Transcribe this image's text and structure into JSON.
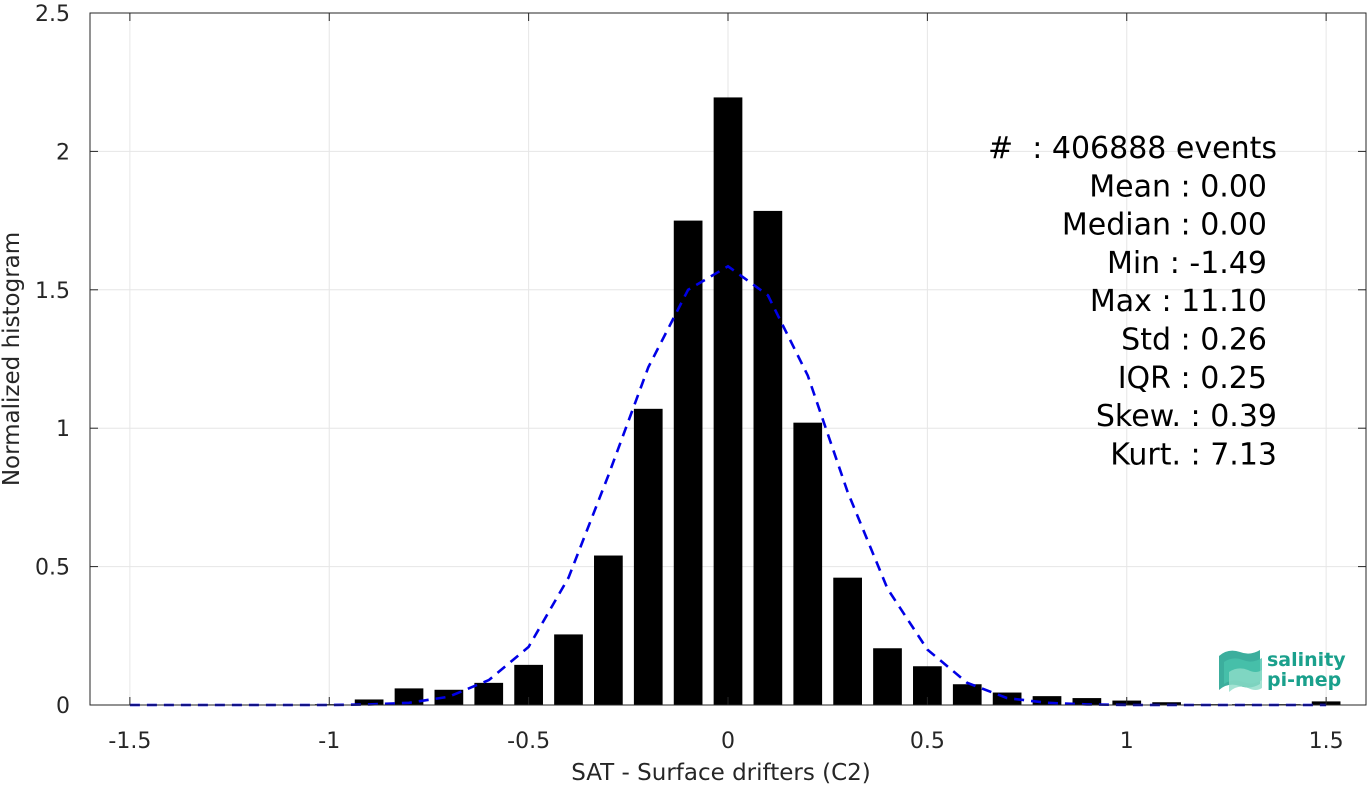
{
  "chart_data": {
    "type": "bar",
    "xlabel": "SAT - Surface drifters (C2)",
    "ylabel": "Normalized histogram",
    "xlim": [
      -1.6,
      1.6
    ],
    "ylim": [
      0,
      2.5
    ],
    "xticks": [
      "-1.5",
      "-1",
      "-0.5",
      "0",
      "0.5",
      "1",
      "1.5"
    ],
    "xtick_values": [
      -1.5,
      -1,
      -0.5,
      0,
      0.5,
      1,
      1.5
    ],
    "yticks": [
      "0",
      "0.5",
      "1",
      "1.5",
      "2",
      "2.5"
    ],
    "ytick_values": [
      0,
      0.5,
      1,
      1.5,
      2,
      2.5
    ],
    "grid": true,
    "bin_width": 0.1,
    "bar_width_fraction": 0.72,
    "bars": {
      "x": [
        -1.5,
        -1.4,
        -1.3,
        -1.2,
        -1.1,
        -1.0,
        -0.9,
        -0.8,
        -0.7,
        -0.6,
        -0.5,
        -0.4,
        -0.3,
        -0.2,
        -0.1,
        0.0,
        0.1,
        0.2,
        0.3,
        0.4,
        0.5,
        0.6,
        0.7,
        0.8,
        0.9,
        1.0,
        1.1,
        1.2,
        1.3,
        1.4,
        1.5
      ],
      "values": [
        0.0,
        0.0,
        0.0,
        0.0,
        0.0,
        0.003,
        0.02,
        0.06,
        0.055,
        0.08,
        0.145,
        0.255,
        0.54,
        1.07,
        1.75,
        2.195,
        1.785,
        1.02,
        0.46,
        0.205,
        0.14,
        0.075,
        0.045,
        0.032,
        0.025,
        0.016,
        0.01,
        0.003,
        0.003,
        0.003,
        0.013
      ]
    },
    "series": [
      {
        "type": "line",
        "style": "dashed",
        "color": "#0000e6",
        "x": [
          -1.5,
          -1.4,
          -1.3,
          -1.2,
          -1.1,
          -1.0,
          -0.9,
          -0.8,
          -0.7,
          -0.6,
          -0.5,
          -0.4,
          -0.3,
          -0.2,
          -0.1,
          0.0,
          0.1,
          0.2,
          0.3,
          0.4,
          0.5,
          0.6,
          0.7,
          0.8,
          0.9,
          1.0,
          1.1,
          1.2,
          1.3,
          1.4,
          1.5
        ],
        "values": [
          0.0,
          0.0,
          0.0,
          0.0,
          0.0,
          0.0,
          0.002,
          0.008,
          0.03,
          0.09,
          0.21,
          0.46,
          0.83,
          1.22,
          1.5,
          1.585,
          1.48,
          1.19,
          0.77,
          0.42,
          0.2,
          0.08,
          0.025,
          0.008,
          0.002,
          0.0,
          0.0,
          0.0,
          0.0,
          0.0,
          0.0
        ]
      }
    ],
    "bar_color": "#000000",
    "stats": [
      {
        "label": "#  ",
        "value": "406888 events"
      },
      {
        "label": "Mean",
        "value": "0.00"
      },
      {
        "label": "Median",
        "value": "0.00"
      },
      {
        "label": "Min",
        "value": "-1.49"
      },
      {
        "label": "Max",
        "value": "11.10"
      },
      {
        "label": "Std",
        "value": "0.26"
      },
      {
        "label": "IQR",
        "value": "0.25"
      },
      {
        "label": "Skew.",
        "value": "0.39"
      },
      {
        "label": "Kurt.",
        "value": "7.13"
      }
    ],
    "stats_lines": [
      "#  : 406888 events",
      "Mean : 0.00",
      "Median : 0.00",
      "Min : -1.49",
      "Max : 11.10",
      "Std : 0.26",
      "IQR : 0.25",
      "Skew. : 0.39",
      "Kurt. : 7.13"
    ]
  },
  "logo": {
    "line1": "salinity",
    "line2": "pi-mep",
    "color": "#1aa08c"
  }
}
